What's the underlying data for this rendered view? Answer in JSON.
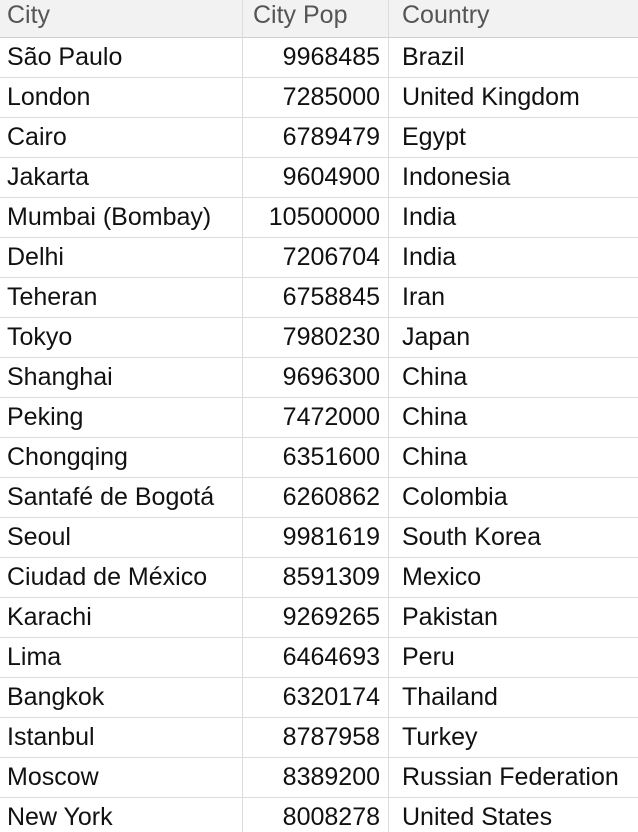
{
  "table": {
    "headers": {
      "city": "City",
      "city_pop": "City Pop",
      "country": "Country"
    },
    "rows": [
      {
        "city": "São Paulo",
        "pop": "9968485",
        "country": "Brazil"
      },
      {
        "city": "London",
        "pop": "7285000",
        "country": "United Kingdom"
      },
      {
        "city": "Cairo",
        "pop": "6789479",
        "country": "Egypt"
      },
      {
        "city": "Jakarta",
        "pop": "9604900",
        "country": "Indonesia"
      },
      {
        "city": "Mumbai (Bombay)",
        "pop": "10500000",
        "country": "India"
      },
      {
        "city": "Delhi",
        "pop": "7206704",
        "country": "India"
      },
      {
        "city": "Teheran",
        "pop": "6758845",
        "country": "Iran"
      },
      {
        "city": "Tokyo",
        "pop": "7980230",
        "country": "Japan"
      },
      {
        "city": "Shanghai",
        "pop": "9696300",
        "country": "China"
      },
      {
        "city": "Peking",
        "pop": "7472000",
        "country": "China"
      },
      {
        "city": "Chongqing",
        "pop": "6351600",
        "country": "China"
      },
      {
        "city": "Santafé de Bogotá",
        "pop": "6260862",
        "country": "Colombia"
      },
      {
        "city": "Seoul",
        "pop": "9981619",
        "country": "South Korea"
      },
      {
        "city": "Ciudad de México",
        "pop": "8591309",
        "country": "Mexico"
      },
      {
        "city": "Karachi",
        "pop": "9269265",
        "country": "Pakistan"
      },
      {
        "city": "Lima",
        "pop": "6464693",
        "country": "Peru"
      },
      {
        "city": "Bangkok",
        "pop": "6320174",
        "country": "Thailand"
      },
      {
        "city": "Istanbul",
        "pop": "8787958",
        "country": "Turkey"
      },
      {
        "city": "Moscow",
        "pop": "8389200",
        "country": "Russian Federation"
      },
      {
        "city": "New York",
        "pop": "8008278",
        "country": "United States"
      }
    ]
  }
}
